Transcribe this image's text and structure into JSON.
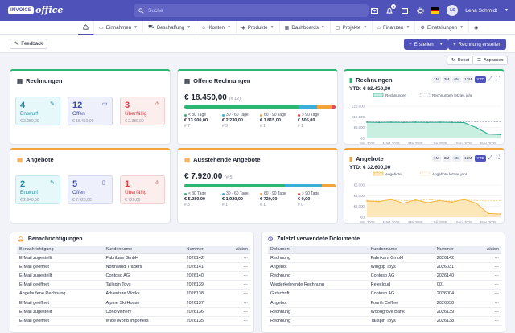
{
  "logo": {
    "brand": "INVOICE",
    "suffix": "office"
  },
  "search": {
    "placeholder": "Suche"
  },
  "user": {
    "initials": "LS",
    "name": "Lena Schmidt",
    "notifications": "5"
  },
  "nav": [
    {
      "label": ""
    },
    {
      "label": "Einnahmen"
    },
    {
      "label": "Beschaffung"
    },
    {
      "label": "Konten"
    },
    {
      "label": "Produkte"
    },
    {
      "label": "Dashboards"
    },
    {
      "label": "Projekte"
    },
    {
      "label": "Finanzen"
    },
    {
      "label": "Einstellungen"
    }
  ],
  "toolbar": {
    "feedback": "Feedback",
    "create": "Erstellen",
    "create_invoice": "Rechnung erstellen",
    "reset": "Reset",
    "customize": "Anpassen"
  },
  "rechnungen": {
    "title": "Rechnungen",
    "kpis": [
      {
        "value": "4",
        "label": "Entwurf",
        "amount": "€ 3.950,00"
      },
      {
        "value": "12",
        "label": "Offen",
        "amount": "€ 18.450,00"
      },
      {
        "value": "3",
        "label": "Überfällig",
        "amount": "€ 2.330,00"
      }
    ]
  },
  "offene": {
    "title": "Offene Rechnungen",
    "total": "€ 18.450,00",
    "count": "(# 12)",
    "shares": [
      0.755,
      0.121,
      0.098,
      0.027
    ],
    "buckets": [
      {
        "label": "< 30 Tage",
        "amount": "€ 13.900,00",
        "count": "# 7"
      },
      {
        "label": "30 - 60 Tage",
        "amount": "€ 2.230,00",
        "count": "# 3"
      },
      {
        "label": "60 - 90 Tage",
        "amount": "€ 1.815,00",
        "count": "# 1"
      },
      {
        "label": "> 90 Tage",
        "amount": "€ 505,00",
        "count": "# 1"
      }
    ]
  },
  "chart1": {
    "title": "Rechnungen",
    "ytd": "YTD: € 82.450,00",
    "ranges": [
      "1M",
      "3M",
      "6M",
      "12M",
      "YTD"
    ],
    "active": "YTD",
    "series_names": [
      "Rechnungen",
      "Rechnungen letztes jahr"
    ],
    "yticks": [
      "€15.000",
      "€10.000",
      "€5.000",
      "€0"
    ],
    "xticks": [
      "Jan. 2026",
      "März 2026",
      "Mai 2026",
      "Juli 2026",
      "Sep. 2026",
      "Nov. 2026"
    ]
  },
  "angebote": {
    "title": "Angebote",
    "kpis": [
      {
        "value": "2",
        "label": "Entwurf",
        "amount": "€ 2.640,00"
      },
      {
        "value": "5",
        "label": "Offen",
        "amount": "€ 7.920,00"
      },
      {
        "value": "1",
        "label": "Überfällig",
        "amount": "€ 720,00"
      }
    ]
  },
  "ausstehende": {
    "title": "Ausstehende Angebote",
    "total": "€ 7.920,00",
    "count": "(# 5)",
    "shares": [
      0.667,
      0.242,
      0.091,
      0.0
    ],
    "buckets": [
      {
        "label": "< 30 Tage",
        "amount": "€ 5.280,00",
        "count": "# 3"
      },
      {
        "label": "30 - 60 Tage",
        "amount": "€ 1.920,00",
        "count": "# 1"
      },
      {
        "label": "60 - 90 Tage",
        "amount": "€ 720,00",
        "count": "# 1"
      },
      {
        "label": "> 90 Tage",
        "amount": "€ 0,00",
        "count": "# 0"
      }
    ]
  },
  "chart2": {
    "title": "Angebote",
    "ytd": "YTD: € 32.600,00",
    "ranges": [
      "1M",
      "3M",
      "6M",
      "12M",
      "YTD"
    ],
    "active": "YTD",
    "series_names": [
      "Angebote",
      "Angebote letztes jahr"
    ],
    "yticks": [
      "€6.000",
      "€4.000",
      "€2.000",
      "€0"
    ],
    "xticks": [
      "Jan. 2026",
      "März 2026",
      "Mai 2026",
      "Juli 2026",
      "Sep. 2026",
      "Nov. 2026"
    ]
  },
  "chart_data": [
    {
      "type": "area",
      "title": "Rechnungen",
      "x": [
        "Jan. 2026",
        "Feb. 2026",
        "März 2026",
        "Apr. 2026",
        "Mai 2026",
        "Juni 2026",
        "Juli 2026",
        "Aug. 2026",
        "Sep. 2026",
        "Okt. 2026",
        "Nov. 2026",
        "Dez. 2026"
      ],
      "ylim": [
        0,
        15000
      ],
      "series": [
        {
          "name": "Rechnungen",
          "values": [
            7500,
            7400,
            7500,
            7400,
            7500,
            7400,
            7500,
            7400,
            7300,
            5000,
            2000,
            1800
          ]
        },
        {
          "name": "Rechnungen letztes jahr",
          "values": [
            7700,
            7700,
            7700,
            7700,
            7700,
            7700,
            7700,
            7700,
            7700,
            7700,
            7700,
            7700
          ]
        }
      ]
    },
    {
      "type": "area",
      "title": "Angebote",
      "x": [
        "Jan. 2026",
        "Feb. 2026",
        "März 2026",
        "Apr. 2026",
        "Mai 2026",
        "Juni 2026",
        "Juli 2026",
        "Aug. 2026",
        "Sep. 2026",
        "Okt. 2026",
        "Nov. 2026",
        "Dez. 2026"
      ],
      "ylim": [
        0,
        6000
      ],
      "series": [
        {
          "name": "Angebote",
          "values": [
            3000,
            2900,
            3300,
            2600,
            3200,
            2700,
            3100,
            2800,
            3300,
            2600,
            700,
            600
          ]
        },
        {
          "name": "Angebote letztes jahr",
          "values": [
            3100,
            3000,
            3200,
            3100,
            3000,
            3300,
            3100,
            3000,
            3200,
            3100,
            3000,
            3100
          ]
        }
      ]
    }
  ],
  "notifications": {
    "title": "Benachrichtigungen",
    "headers": [
      "Benachrichtigung",
      "Kundenname",
      "Nummer",
      "Aktion"
    ],
    "rows": [
      [
        "E-Mail zugestellt",
        "Fabrikam GmbH",
        "2026142",
        "···"
      ],
      [
        "E-Mail geöffnet",
        "Northwind Traders",
        "2026141",
        "···"
      ],
      [
        "E-Mail zugestellt",
        "Contoso AG",
        "2026140",
        "···"
      ],
      [
        "E-Mail geöffnet",
        "Tailspin Toys",
        "2026139",
        "···"
      ],
      [
        "Abgelaufene Rechnung",
        "Adventure Works",
        "2026138",
        "···"
      ],
      [
        "E-Mail geöffnet",
        "Alpine Ski House",
        "2026137",
        "···"
      ],
      [
        "E-Mail zugestellt",
        "Coho Winery",
        "2026136",
        "···"
      ],
      [
        "E-Mail geöffnet",
        "Wide World Importers",
        "2026135",
        "···"
      ]
    ]
  },
  "recent": {
    "title": "Zuletzt verwendete Dokumente",
    "headers": [
      "Dokument",
      "Kundenname",
      "Nummer",
      "Aktion"
    ],
    "rows": [
      [
        "Rechnung",
        "Fabrikam GmbH",
        "2026142",
        "···"
      ],
      [
        "Angebot",
        "Wingtip Toys",
        "2026031",
        "···"
      ],
      [
        "Rechnung",
        "Contoso AG",
        "2026140",
        "···"
      ],
      [
        "Wiederkehrende Rechnung",
        "Relecloud",
        "001",
        "···"
      ],
      [
        "Gutschrift",
        "Contoso AG",
        "2026004",
        "···"
      ],
      [
        "Angebot",
        "Fourth Coffee",
        "2026030",
        "···"
      ],
      [
        "Rechnung",
        "Woodgrove Bank",
        "2026139",
        "···"
      ],
      [
        "Rechnung",
        "Tailspin Toys",
        "2026138",
        "···"
      ]
    ]
  },
  "colors": {
    "primary": "#4f52b8",
    "green": "#2bb673",
    "orange": "#f2a33a",
    "red": "#e5484d",
    "teal": "#1fa58a",
    "ytd_green": "#1fa58a",
    "ytd_orange": "#f2b43a"
  }
}
